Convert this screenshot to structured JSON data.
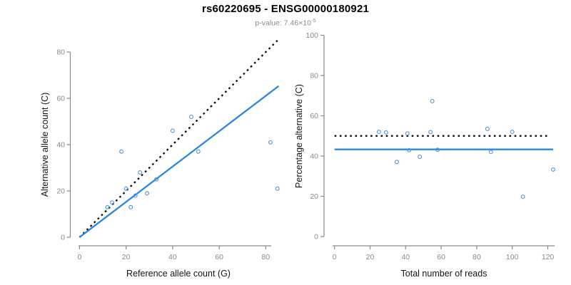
{
  "title": "rs60220695 - ENSG00000180921",
  "subtitle": {
    "text": "p-value: 7.46×10",
    "superscript": "-5"
  },
  "colors": {
    "fit_line_blue": "#2F86E0",
    "point_blue": "#4A97E0",
    "reference_line_black": "#000000",
    "axis_gray": "#8a8a8a",
    "tick_label_gray": "#8a8a8a",
    "axis_title_color": "#141414",
    "subtitle_gray": "#8a8a8a",
    "background": "#ffffff"
  },
  "chart_data": [
    {
      "type": "scatter",
      "title": "",
      "xlabel": "Reference allele count (G)",
      "ylabel": "Alternative allele count (C)",
      "xticks": [
        0,
        20,
        40,
        60,
        80
      ],
      "yticks": [
        0,
        20,
        40,
        60,
        80
      ],
      "xlim": [
        0,
        88
      ],
      "ylim": [
        0,
        88
      ],
      "grid": false,
      "legend": "none",
      "points": [
        [
          12,
          13
        ],
        [
          14,
          15
        ],
        [
          18,
          37
        ],
        [
          20,
          21
        ],
        [
          22,
          13
        ],
        [
          24,
          18
        ],
        [
          26,
          28
        ],
        [
          29,
          19
        ],
        [
          33,
          25
        ],
        [
          40,
          46
        ],
        [
          48,
          52
        ],
        [
          51,
          37
        ],
        [
          82,
          41
        ],
        [
          85,
          21
        ]
      ],
      "lines": [
        {
          "name": "identity-line",
          "style": "dotted",
          "color": "#000000",
          "x1": 0,
          "y1": 0,
          "x2": 85.8,
          "y2": 85.8
        },
        {
          "name": "fit-line",
          "style": "solid",
          "color": "#2F86E0",
          "x1": 0,
          "y1": 0,
          "x2": 85.5,
          "y2": 65.3
        }
      ]
    },
    {
      "type": "scatter",
      "title": "",
      "xlabel": "Total number of reads",
      "ylabel": "Percentage alternative (C)",
      "xticks": [
        0,
        20,
        40,
        60,
        80,
        100,
        120
      ],
      "yticks": [
        0,
        20,
        40,
        60,
        80,
        100
      ],
      "xlim": [
        0,
        126
      ],
      "ylim": [
        0,
        100
      ],
      "grid": false,
      "legend": "none",
      "points": [
        [
          25,
          52.0
        ],
        [
          29,
          51.7
        ],
        [
          35,
          37.1
        ],
        [
          41,
          51.2
        ],
        [
          42,
          42.9
        ],
        [
          48,
          39.6
        ],
        [
          54,
          51.9
        ],
        [
          55,
          67.3
        ],
        [
          58,
          43.1
        ],
        [
          86,
          53.5
        ],
        [
          88,
          42.0
        ],
        [
          100,
          52.0
        ],
        [
          106,
          19.8
        ],
        [
          123,
          33.3
        ]
      ],
      "lines": [
        {
          "name": "fifty-percent-line",
          "style": "dotted",
          "color": "#000000",
          "x1": 0,
          "y1": 50,
          "x2": 120.6,
          "y2": 50
        },
        {
          "name": "mean-percentage-line",
          "style": "solid",
          "color": "#2F86E0",
          "x1": 0,
          "y1": 43.3,
          "x2": 123,
          "y2": 43.3
        }
      ]
    }
  ]
}
